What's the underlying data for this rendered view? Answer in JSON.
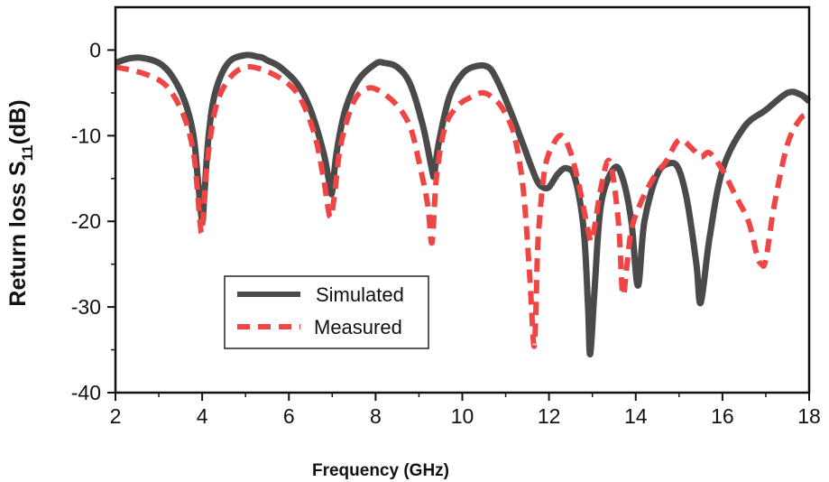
{
  "chart_data": {
    "type": "line",
    "title": "",
    "xlabel": "Frequency (GHz)",
    "ylabel": "Return loss S",
    "ylabel_sub": "11",
    "ylabel_suffix": "(dB)",
    "xlim": [
      2,
      18
    ],
    "ylim": [
      -40,
      5
    ],
    "xticks": [
      2,
      4,
      6,
      8,
      10,
      12,
      14,
      16,
      18
    ],
    "xtick_labels": [
      "2",
      "4",
      "6",
      "8",
      "10",
      "12",
      "14",
      "16",
      "18"
    ],
    "yticks": [
      0,
      -10,
      -20,
      -30,
      -40
    ],
    "ytick_labels": [
      "0",
      "-10",
      "-20",
      "-30",
      "-40"
    ],
    "grid": false,
    "legend_position": "lower-left",
    "series": [
      {
        "name": "Simulated",
        "color": "#4a4a4a",
        "style": "solid",
        "x": [
          2.0,
          2.3,
          2.6,
          3.0,
          3.3,
          3.6,
          3.8,
          3.9,
          4.0,
          4.05,
          4.15,
          4.3,
          4.6,
          5.0,
          5.3,
          5.4,
          5.5,
          5.8,
          6.2,
          6.5,
          6.8,
          6.95,
          7.0,
          7.1,
          7.3,
          7.6,
          8.0,
          8.2,
          8.5,
          8.8,
          9.1,
          9.3,
          9.35,
          9.45,
          9.7,
          10.0,
          10.3,
          10.6,
          10.8,
          11.1,
          11.4,
          11.7,
          11.85,
          12.0,
          12.2,
          12.4,
          12.6,
          12.8,
          12.9,
          12.95,
          13.05,
          13.2,
          13.5,
          13.7,
          13.9,
          14.05,
          14.2,
          14.5,
          14.8,
          15.0,
          15.2,
          15.4,
          15.5,
          15.7,
          16.0,
          16.5,
          17.0,
          17.5,
          17.8,
          18.0
        ],
        "y": [
          -1.5,
          -1.0,
          -0.9,
          -1.5,
          -3.0,
          -6.0,
          -10.0,
          -15.0,
          -20.0,
          -17.0,
          -10.0,
          -5.0,
          -1.5,
          -0.6,
          -0.8,
          -0.9,
          -1.2,
          -2.0,
          -4.0,
          -7.0,
          -12.0,
          -16.0,
          -16.5,
          -12.0,
          -7.0,
          -3.5,
          -1.6,
          -1.5,
          -2.0,
          -4.0,
          -9.0,
          -14.0,
          -14.5,
          -11.0,
          -5.5,
          -2.8,
          -1.9,
          -2.0,
          -3.5,
          -7.0,
          -11.0,
          -15.0,
          -16.0,
          -16.0,
          -14.5,
          -13.8,
          -15.0,
          -21.0,
          -30.0,
          -35.5,
          -28.0,
          -18.0,
          -13.8,
          -15.0,
          -20.0,
          -27.5,
          -20.0,
          -14.5,
          -13.2,
          -14.0,
          -18.0,
          -25.0,
          -29.5,
          -22.0,
          -14.0,
          -9.0,
          -7.0,
          -5.0,
          -5.2,
          -6.0
        ]
      },
      {
        "name": "Measured",
        "color": "#f04545",
        "style": "dashed",
        "x": [
          2.0,
          2.5,
          3.0,
          3.3,
          3.6,
          3.8,
          3.9,
          3.95,
          4.0,
          4.1,
          4.3,
          4.6,
          5.0,
          5.5,
          6.0,
          6.3,
          6.6,
          6.8,
          6.95,
          7.05,
          7.2,
          7.5,
          7.8,
          8.1,
          8.5,
          8.8,
          9.0,
          9.2,
          9.3,
          9.4,
          9.6,
          9.9,
          10.2,
          10.5,
          10.8,
          11.0,
          11.2,
          11.4,
          11.55,
          11.65,
          11.7,
          11.75,
          11.9,
          12.1,
          12.3,
          12.5,
          12.7,
          12.9,
          13.0,
          13.2,
          13.4,
          13.6,
          13.7,
          13.8,
          13.9,
          14.1,
          14.4,
          14.7,
          15.0,
          15.3,
          15.5,
          15.7,
          16.0,
          16.3,
          16.6,
          16.8,
          16.9,
          17.0,
          17.2,
          17.5,
          17.8,
          18.0
        ],
        "y": [
          -2.0,
          -2.5,
          -3.5,
          -5.0,
          -8.0,
          -12.0,
          -17.0,
          -20.0,
          -21.0,
          -14.0,
          -7.0,
          -3.5,
          -2.0,
          -2.5,
          -4.0,
          -6.0,
          -10.0,
          -15.0,
          -19.5,
          -17.0,
          -11.0,
          -6.0,
          -4.5,
          -4.8,
          -6.5,
          -9.0,
          -13.0,
          -18.0,
          -22.5,
          -15.0,
          -9.0,
          -6.5,
          -5.5,
          -5.0,
          -6.0,
          -7.5,
          -10.0,
          -16.0,
          -26.0,
          -34.5,
          -30.0,
          -22.0,
          -14.0,
          -11.0,
          -10.0,
          -12.0,
          -16.0,
          -21.0,
          -22.0,
          -16.0,
          -13.0,
          -20.0,
          -28.5,
          -25.0,
          -21.0,
          -18.0,
          -15.0,
          -13.0,
          -10.5,
          -11.5,
          -12.5,
          -12.0,
          -14.0,
          -17.0,
          -20.0,
          -24.0,
          -25.0,
          -24.5,
          -18.0,
          -11.0,
          -8.0,
          -7.5
        ]
      }
    ]
  }
}
